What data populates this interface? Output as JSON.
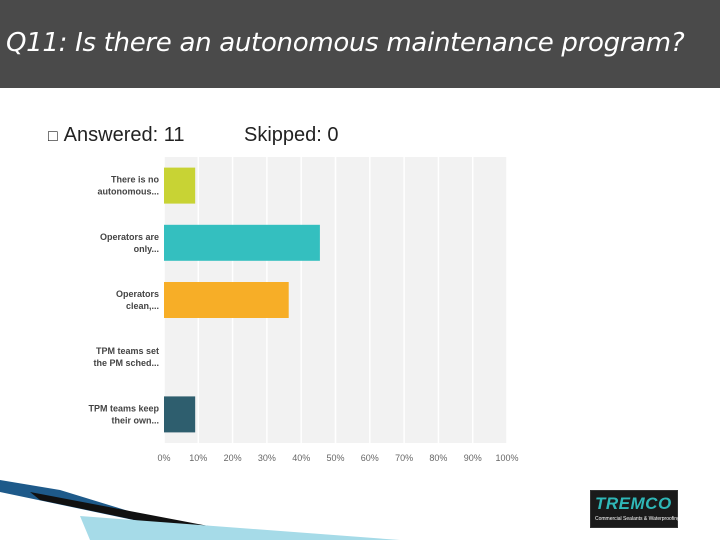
{
  "slide": {
    "title": "Q11: Is there an autonomous maintenance program?",
    "answered_label": "Answered: 11",
    "skipped_label": "Skipped: 0",
    "bullet": "□"
  },
  "chart_data": {
    "type": "bar",
    "orientation": "horizontal",
    "categories": [
      [
        "There is no",
        "autonomous..."
      ],
      [
        "Operators are",
        "only..."
      ],
      [
        "Operators",
        "clean,..."
      ],
      [
        "TPM teams set",
        "the PM sched..."
      ],
      [
        "TPM teams keep",
        "their own..."
      ]
    ],
    "values": [
      9.09,
      45.45,
      36.36,
      0,
      9.09
    ],
    "colors": [
      "#c8d334",
      "#34bfbf",
      "#f7ae27",
      "#888888",
      "#2e5e6e"
    ],
    "xticks": [
      "0%",
      "10%",
      "20%",
      "30%",
      "40%",
      "50%",
      "60%",
      "70%",
      "80%",
      "90%",
      "100%"
    ],
    "xlim": [
      0,
      100
    ],
    "grid": true
  },
  "logo": {
    "name": "TREMCO",
    "tagline": "Commercial Sealants & Waterproofing"
  }
}
